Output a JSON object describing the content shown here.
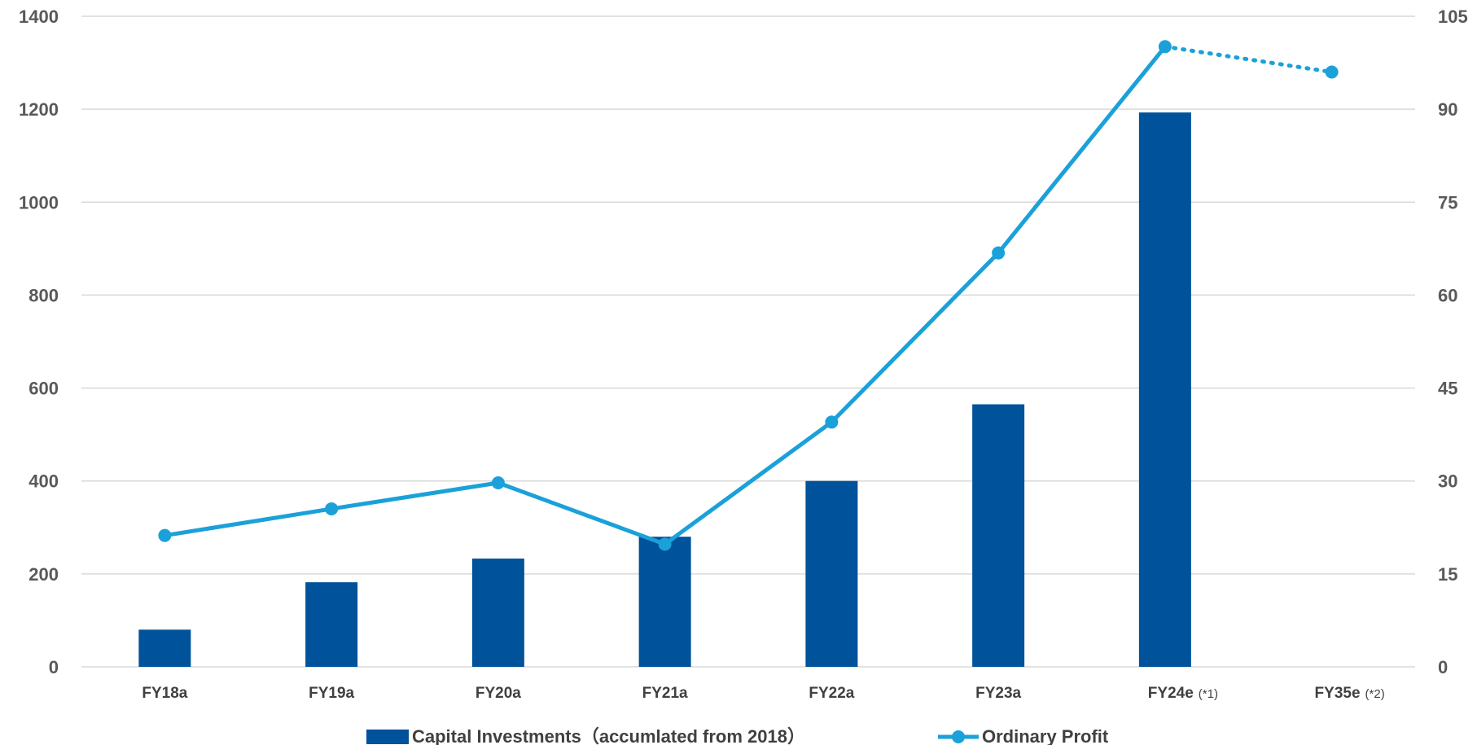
{
  "colors": {
    "bar": "#00529B",
    "line": "#1BA1D9",
    "grid": "#D9D9D9",
    "axis_text": "#595959"
  },
  "chart_data": {
    "type": "bar",
    "categories": [
      "FY18a",
      "FY19a",
      "FY20a",
      "FY21a",
      "FY22a",
      "FY23a",
      "FY24e",
      "FY35e"
    ],
    "category_notes": [
      "",
      "",
      "",
      "",
      "",
      "",
      "(*1)",
      "(*2)"
    ],
    "series": [
      {
        "name": "Capital Investments（accumlated from 2018）",
        "type": "bar",
        "axis": "left",
        "values": [
          80,
          182,
          233,
          280,
          400,
          565,
          1193,
          null
        ]
      },
      {
        "name": "Ordinary Profit",
        "type": "line",
        "axis": "right",
        "values": [
          21.2,
          25.5,
          29.7,
          19.8,
          39.5,
          66.8,
          100.1,
          96.0
        ],
        "dotted_from_index": 6
      }
    ],
    "left_axis": {
      "ylim": [
        0,
        1400
      ],
      "ticks": [
        "0",
        "200",
        "400",
        "600",
        "800",
        "1000",
        "1200",
        "1400"
      ]
    },
    "right_axis": {
      "ylim": [
        0,
        105
      ],
      "ticks": [
        "0",
        "15",
        "30",
        "45",
        "60",
        "75",
        "90",
        "105"
      ]
    },
    "grid": true,
    "legend": "bottom"
  }
}
